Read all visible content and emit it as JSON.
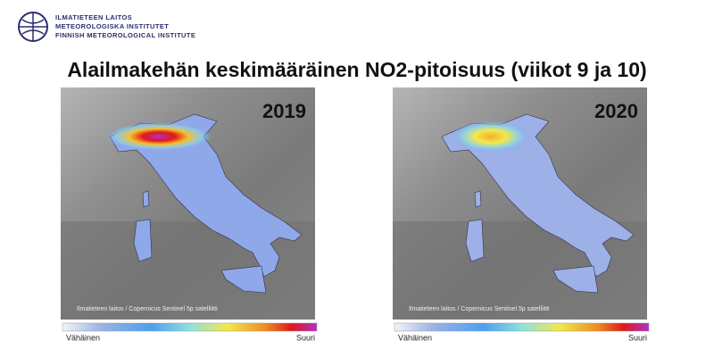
{
  "header": {
    "logo_lines": [
      "ILMATIETEEN LAITOS",
      "METEOROLOGISKA INSTITUTET",
      "FINNISH METEOROLOGICAL INSTITUTE"
    ],
    "title": "Alailmakehän keskimääräinen NO2-pitoisuus (viikot 9 ja 10)"
  },
  "panels": [
    {
      "year": "2019",
      "credit": "Ilmatieteen laitos / Copernicus Sentinel 5p satelliitti",
      "legend_low": "Vähäinen",
      "legend_high": "Suuri"
    },
    {
      "year": "2020",
      "credit": "Ilmatieteen laitos / Copernicus Sentinel 5p satelliitti",
      "legend_low": "Vähäinen",
      "legend_high": "Suuri"
    }
  ]
}
